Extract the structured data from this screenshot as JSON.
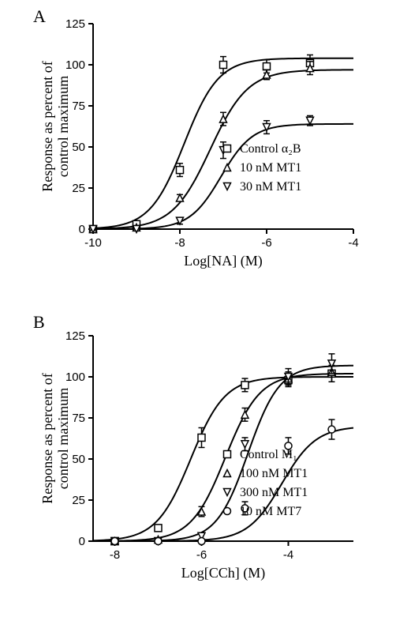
{
  "panelA": {
    "label": "A",
    "type": "line+scatter",
    "xlabel": "Log[NA] (M)",
    "ylabel": "Response as percent of\ncontrol maximum",
    "xlim": [
      -10,
      -4
    ],
    "ylim": [
      0,
      125
    ],
    "xtick_step": 2,
    "ytick_step": 25,
    "label_fontsize": 18,
    "tick_fontsize": 15,
    "axis_color": "#000000",
    "line_color": "#000000",
    "marker_size": 9,
    "line_width": 2,
    "error_cap": 4,
    "series": [
      {
        "name": "Control α2B",
        "marker": "square",
        "x": [
          -10,
          -9,
          -8,
          -7,
          -6,
          -5
        ],
        "y": [
          0,
          3,
          36,
          100,
          99,
          101
        ],
        "yerr": [
          0,
          1,
          4,
          5,
          4,
          5
        ],
        "ec50": -7.9,
        "top": 104,
        "hill": 1.1
      },
      {
        "name": "10 nM MT1",
        "marker": "triangle-up",
        "x": [
          -10,
          -9,
          -8,
          -7,
          -6,
          -5
        ],
        "y": [
          0,
          1,
          19,
          67,
          94,
          98
        ],
        "yerr": [
          0,
          1,
          2,
          4,
          3,
          4
        ],
        "ec50": -7.3,
        "top": 97,
        "hill": 1.0
      },
      {
        "name": "30 nM MT1",
        "marker": "triangle-down",
        "x": [
          -10,
          -9,
          -8,
          -7,
          -6,
          -5
        ],
        "y": [
          0,
          0,
          5,
          48,
          62,
          66
        ],
        "yerr": [
          0,
          0,
          2,
          5,
          4,
          3
        ],
        "ec50": -7.05,
        "top": 64,
        "hill": 1.2
      }
    ],
    "legend": {
      "items": [
        "Control α₂B",
        "10 nM MT1",
        "30 nM MT1"
      ],
      "markers": [
        "square",
        "triangle-up",
        "triangle-down"
      ]
    }
  },
  "panelB": {
    "label": "B",
    "type": "line+scatter",
    "xlabel": "Log[CCh] (M)",
    "ylabel": "Response as percent of\ncontrol maximum",
    "xlim": [
      -8.5,
      -2.5
    ],
    "ylim": [
      0,
      125
    ],
    "xtick_vals": [
      -8,
      -6,
      -4
    ],
    "ytick_step": 25,
    "label_fontsize": 18,
    "tick_fontsize": 15,
    "axis_color": "#000000",
    "line_color": "#000000",
    "marker_size": 9,
    "line_width": 2,
    "error_cap": 4,
    "series": [
      {
        "name": "Control M1",
        "marker": "square",
        "x": [
          -8,
          -7,
          -6,
          -5,
          -4,
          -3
        ],
        "y": [
          0,
          8,
          63,
          95,
          98,
          102
        ],
        "yerr": [
          0,
          2,
          6,
          4,
          4,
          5
        ],
        "ec50": -6.25,
        "top": 100,
        "hill": 1.1
      },
      {
        "name": "100 nM MT1",
        "marker": "triangle-up",
        "x": [
          -8,
          -7,
          -6,
          -5,
          -4,
          -3
        ],
        "y": [
          0,
          1,
          18,
          77,
          99,
          103
        ],
        "yerr": [
          0,
          1,
          3,
          4,
          4,
          6
        ],
        "ec50": -5.45,
        "top": 102,
        "hill": 1.1
      },
      {
        "name": "300 nM MT1",
        "marker": "triangle-down",
        "x": [
          -8,
          -7,
          -6,
          -5,
          -4,
          -3
        ],
        "y": [
          0,
          0,
          3,
          59,
          100,
          108
        ],
        "yerr": [
          0,
          0,
          2,
          4,
          5,
          6
        ],
        "ec50": -4.93,
        "top": 107,
        "hill": 1.2
      },
      {
        "name": "10 nM MT7",
        "marker": "circle",
        "x": [
          -8,
          -7,
          -6,
          -5,
          -4,
          -3
        ],
        "y": [
          0,
          0,
          0,
          20,
          58,
          68
        ],
        "yerr": [
          0,
          0,
          0,
          4,
          5,
          6
        ],
        "ec50": -4.15,
        "top": 70,
        "hill": 1.1
      }
    ],
    "legend": {
      "items": [
        "Control M₁",
        "100 nM MT1",
        "300 nM MT1",
        "10 nM MT7"
      ],
      "markers": [
        "square",
        "triangle-up",
        "triangle-down",
        "circle"
      ]
    }
  }
}
